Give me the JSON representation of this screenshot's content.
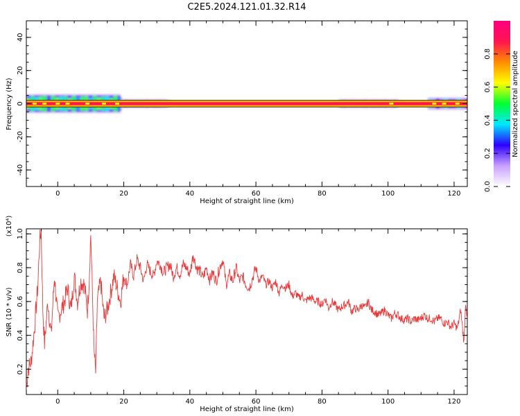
{
  "title": "C2E5.2024.121.01.32.R14",
  "chart_data": [
    {
      "type": "heatmap",
      "xlabel": "Height of straight line (km)",
      "ylabel": "Frequency (Hz)",
      "xlim": [
        -9.5,
        124
      ],
      "ylim": [
        -50,
        50
      ],
      "x_ticks": [
        0,
        20,
        40,
        60,
        80,
        100,
        120
      ],
      "y_ticks": [
        -40,
        -20,
        0,
        20,
        40
      ],
      "line_frequency_hz": 0,
      "band_half_width_hz": 2,
      "colorbar": {
        "label": "Normalized spectral amplitude",
        "range": [
          0,
          1
        ],
        "ticks": [
          "0.0",
          "0.2",
          "0.4",
          "0.6",
          "0.8"
        ],
        "colors": [
          "#ffffff",
          "#c9a0ff",
          "#2c00ff",
          "#00e8ff",
          "#00ff32",
          "#ffff00",
          "#ff8c00",
          "#ff1450",
          "#ff0080"
        ]
      },
      "spread_regions": [
        {
          "x": [
            -9.5,
            19
          ],
          "freq_halfwidth_hz": 5,
          "max_amplitude": 0.55
        },
        {
          "x": [
            19,
            33
          ],
          "freq_halfwidth_hz": 2,
          "max_amplitude": 0.35
        },
        {
          "x": [
            85,
            103
          ],
          "freq_halfwidth_hz": 2,
          "max_amplitude": 0.3
        },
        {
          "x": [
            112,
            124
          ],
          "freq_halfwidth_hz": 3,
          "max_amplitude": 0.4
        }
      ]
    },
    {
      "type": "line",
      "xlabel": "Height of straight line (km)",
      "ylabel": "SNR (10 * v/v)",
      "y_multiplier": "(x10⁴)",
      "xlim": [
        -9.5,
        124
      ],
      "ylim": [
        0.05,
        1.03
      ],
      "x_ticks": [
        0,
        20,
        40,
        60,
        80,
        100,
        120
      ],
      "y_ticks": [
        0.2,
        0.4,
        0.6,
        0.8,
        1.0
      ],
      "y_tick_labels": [
        "0.2",
        "0.4",
        "0.6",
        "0.8",
        "1.0"
      ],
      "color": "#e83a3a",
      "series": [
        {
          "x": [
            -9.5,
            -9,
            -8,
            -7,
            -6,
            -5.5,
            -5,
            -4.5,
            -4,
            -3,
            -2,
            -1,
            0,
            1,
            2,
            3,
            4,
            5,
            6,
            7,
            8,
            9,
            9.5,
            10,
            11,
            11.5,
            12,
            13,
            14,
            15,
            16,
            17,
            18,
            19,
            20,
            21,
            22,
            23,
            24,
            25,
            26,
            27,
            28,
            29,
            30,
            31,
            32,
            33,
            34,
            35,
            36,
            37,
            38,
            39,
            40,
            41,
            42,
            43,
            44,
            45,
            46,
            47,
            48,
            49,
            50,
            51,
            52,
            53,
            54,
            55,
            56,
            57,
            58,
            59,
            60,
            61,
            62,
            63,
            64,
            65,
            66,
            67,
            68,
            69,
            70,
            71,
            72,
            73,
            74,
            75,
            76,
            77,
            78,
            79,
            80,
            81,
            82,
            83,
            84,
            85,
            86,
            87,
            88,
            89,
            90,
            91,
            92,
            93,
            94,
            95,
            96,
            97,
            98,
            99,
            100,
            101,
            102,
            103,
            104,
            105,
            106,
            107,
            108,
            109,
            110,
            111,
            112,
            113,
            114,
            115,
            116,
            117,
            118,
            119,
            120,
            121,
            122,
            122.5,
            123,
            123.5,
            124
          ],
          "y": [
            0.08,
            0.2,
            0.25,
            0.45,
            0.7,
            0.95,
            1.02,
            0.55,
            0.35,
            0.6,
            0.4,
            0.75,
            0.5,
            0.55,
            0.6,
            0.68,
            0.55,
            0.75,
            0.6,
            0.72,
            0.7,
            0.55,
            0.72,
            1.0,
            0.3,
            0.18,
            0.6,
            0.72,
            0.5,
            0.55,
            0.65,
            0.75,
            0.68,
            0.6,
            0.75,
            0.7,
            0.82,
            0.75,
            0.85,
            0.8,
            0.72,
            0.82,
            0.78,
            0.75,
            0.84,
            0.82,
            0.77,
            0.8,
            0.82,
            0.75,
            0.8,
            0.76,
            0.82,
            0.8,
            0.76,
            0.88,
            0.8,
            0.78,
            0.74,
            0.8,
            0.73,
            0.77,
            0.72,
            0.8,
            0.85,
            0.7,
            0.76,
            0.72,
            0.8,
            0.72,
            0.75,
            0.7,
            0.68,
            0.74,
            0.8,
            0.72,
            0.75,
            0.7,
            0.72,
            0.68,
            0.72,
            0.65,
            0.7,
            0.68,
            0.7,
            0.63,
            0.65,
            0.62,
            0.64,
            0.6,
            0.62,
            0.62,
            0.6,
            0.6,
            0.58,
            0.62,
            0.56,
            0.6,
            0.58,
            0.55,
            0.57,
            0.58,
            0.6,
            0.54,
            0.56,
            0.55,
            0.58,
            0.56,
            0.6,
            0.55,
            0.54,
            0.52,
            0.53,
            0.55,
            0.52,
            0.5,
            0.53,
            0.52,
            0.5,
            0.49,
            0.5,
            0.48,
            0.5,
            0.49,
            0.5,
            0.52,
            0.5,
            0.5,
            0.48,
            0.5,
            0.5,
            0.47,
            0.48,
            0.45,
            0.47,
            0.44,
            0.55,
            0.45,
            0.36,
            0.6,
            0.5
          ]
        }
      ]
    }
  ]
}
